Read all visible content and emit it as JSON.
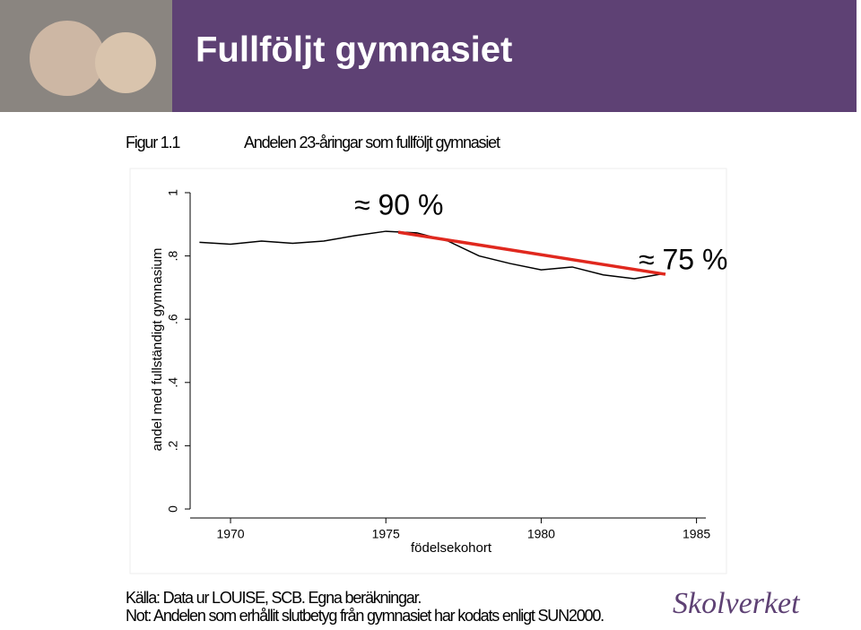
{
  "header": {
    "title": "Fullföljt gymnasiet"
  },
  "figure_label": "Figur 1.1",
  "chart_data": {
    "type": "line",
    "title": "Andelen 23-åringar som fullföljt gymnasiet",
    "x_label": "födelsekohort",
    "y_label": "andel med fullständigt gymnasium",
    "x": [
      1969,
      1970,
      1971,
      1972,
      1973,
      1974,
      1975,
      1976,
      1977,
      1978,
      1979,
      1980,
      1981,
      1982,
      1983,
      1984
    ],
    "series": [
      {
        "color": "#000000",
        "values": [
          0.843,
          0.837,
          0.847,
          0.84,
          0.847,
          0.864,
          0.878,
          0.873,
          0.847,
          0.8,
          0.776,
          0.756,
          0.765,
          0.74,
          0.728,
          0.745
        ]
      }
    ],
    "trend_line": {
      "color": "#e0281e",
      "x": [
        1975.4,
        1984
      ],
      "values": [
        0.875,
        0.742
      ]
    },
    "annotations": [
      "≈ 90 %",
      "≈ 75 %"
    ],
    "xlim": [
      1968.7,
      1985.3
    ],
    "xticks": [
      1970,
      1975,
      1980,
      1985
    ],
    "ylim": [
      0,
      1
    ],
    "yticks": [
      0,
      {
        "value": 0.2,
        "label": ".2"
      },
      {
        "value": 0.4,
        "label": ".4"
      },
      {
        "value": 0.6,
        "label": ".6"
      },
      {
        "value": 0.8,
        "label": ".8"
      },
      1
    ]
  },
  "footer": {
    "source": "Källa: Data ur LOUISE, SCB. Egna beräkningar.",
    "note": "Not: Andelen som erhållit slutbetyg från gymnasiet har kodats enligt SUN2000.",
    "logo": "Skolverket"
  }
}
